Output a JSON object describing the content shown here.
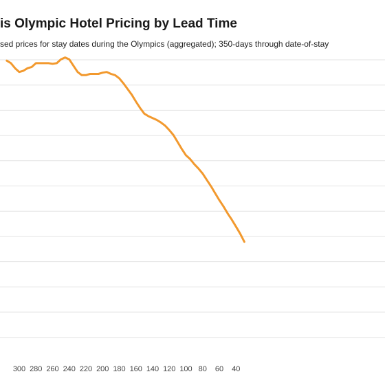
{
  "chart_data": {
    "type": "line",
    "title": "is Olympic Hotel Pricing by Lead Time",
    "subtitle": "sed prices for stay dates during the Olympics (aggregated); 350-days through date-of-stay",
    "xlabel": "",
    "ylabel": "",
    "x_reversed": true,
    "x_ticks": [
      300,
      280,
      260,
      240,
      220,
      200,
      180,
      160,
      140,
      120,
      100,
      80,
      60,
      40
    ],
    "grid": "horizontal",
    "colors": {
      "line": "#F2992E",
      "grid": "#e3e3e3"
    },
    "series": [
      {
        "x": [
          315,
          310,
          305,
          300,
          295,
          290,
          285,
          280,
          275,
          270,
          265,
          260,
          255,
          250,
          245,
          240,
          235,
          230,
          225,
          220,
          215,
          210,
          205,
          200,
          195,
          190,
          185,
          180,
          175,
          170,
          165,
          160,
          155,
          150,
          145,
          140,
          135,
          130,
          125,
          120,
          115,
          110,
          105,
          100,
          95,
          90,
          85,
          80,
          75,
          70,
          65,
          60,
          55,
          50,
          45,
          40,
          35,
          30
        ],
        "y": [
          96,
          95.6,
          94.8,
          94.2,
          94.4,
          94.8,
          95.0,
          95.6,
          95.6,
          95.6,
          95.6,
          95.5,
          95.6,
          96.2,
          96.5,
          96.2,
          95.2,
          94.2,
          93.7,
          93.7,
          93.9,
          93.9,
          93.9,
          94.1,
          94.2,
          93.9,
          93.7,
          93.2,
          92.4,
          91.5,
          90.6,
          89.5,
          88.5,
          87.6,
          87.2,
          86.9,
          86.6,
          86.2,
          85.7,
          85.0,
          84.2,
          83.1,
          82.0,
          81.0,
          80.4,
          79.6,
          78.9,
          78.1,
          77.1,
          76.1,
          75.0,
          73.9,
          72.9,
          71.8,
          70.8,
          69.7,
          68.6,
          67.3
        ]
      }
    ]
  }
}
